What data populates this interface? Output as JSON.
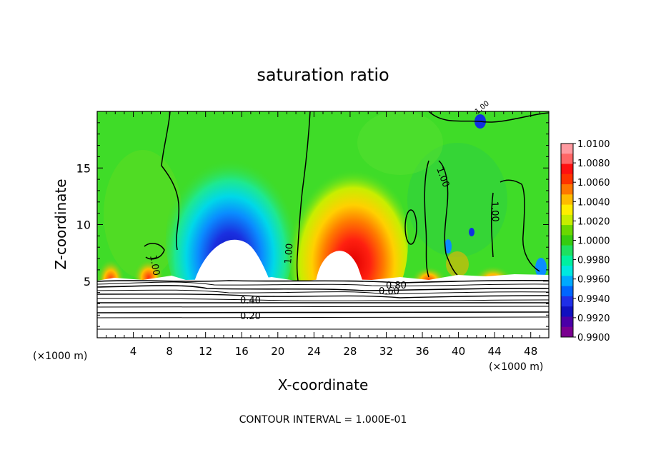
{
  "chart_data": {
    "type": "heatmap",
    "title": "saturation ratio",
    "xlabel": "X-coordinate",
    "ylabel": "Z-coordinate",
    "x_unit_left": "(×1000 m)",
    "x_unit_right": "(×1000 m)",
    "xlim": [
      0,
      50
    ],
    "ylim": [
      0,
      20
    ],
    "x_ticks": [
      "4",
      "8",
      "12",
      "16",
      "20",
      "24",
      "28",
      "32",
      "36",
      "40",
      "44",
      "48"
    ],
    "y_ticks": [
      "5",
      "10",
      "15"
    ],
    "footer": "CONTOUR INTERVAL = 1.000E-01",
    "colorbar": {
      "levels": [
        "1.0100",
        "1.0080",
        "1.0060",
        "1.0040",
        "1.0020",
        "1.0000",
        "0.9980",
        "0.9960",
        "0.9940",
        "0.9920",
        "0.9900"
      ],
      "colors": [
        "#ff9aa0",
        "#ff6666",
        "#ff1010",
        "#ff3300",
        "#ff7700",
        "#ffbb00",
        "#ffee00",
        "#c6ee00",
        "#6ad800",
        "#35cc10",
        "#1ee060",
        "#00f0a0",
        "#00e8e0",
        "#00aaff",
        "#0066ff",
        "#1f2fe8",
        "#1010c0",
        "#4a00a8",
        "#7a0090"
      ]
    },
    "contour_labels": [
      "1.00",
      "1.00",
      "1.00",
      "1.00",
      "1.00",
      "0.80",
      "0.60",
      "0.40",
      "0.20"
    ],
    "colors": {
      "background_field": "#3fdc28",
      "low_blue": "#1a30e0",
      "high_red": "#ff2010",
      "line": "#000000"
    }
  }
}
